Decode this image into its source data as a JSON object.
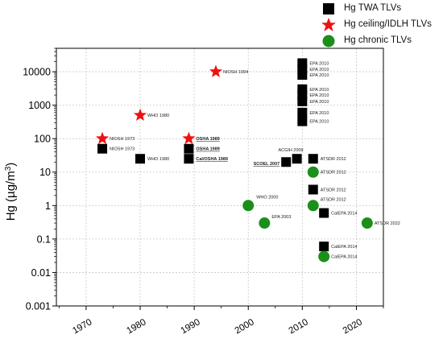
{
  "chart_data": {
    "type": "scatter",
    "ylabel_main": "Hg (µg/m",
    "ylabel_sup": "3",
    "ylabel_end": ")",
    "yscale": "log",
    "ylim": [
      0.001,
      50000
    ],
    "xlim": [
      1964.5,
      2025
    ],
    "x_ticks": [
      "1970",
      "1980",
      "1990",
      "2000",
      "2010",
      "2020"
    ],
    "x_tick_values": [
      1970,
      1980,
      1990,
      2000,
      2010,
      2020
    ],
    "y_ticks": [
      "0.001",
      "0.01",
      "0.1",
      "1",
      "10",
      "100",
      "1000",
      "10000"
    ],
    "y_tick_values": [
      0.001,
      0.01,
      0.1,
      1,
      10,
      100,
      1000,
      10000
    ],
    "grid": true,
    "legend_position": "top-right",
    "series": [
      {
        "name": "Hg TWA TLVs",
        "marker": "square",
        "color": "#000000",
        "points": [
          {
            "x": 1973,
            "y": 50,
            "label": "NIOSH 1973",
            "bold": false
          },
          {
            "x": 1980,
            "y": 25,
            "label": "WHO 1980",
            "bold": false
          },
          {
            "x": 1989,
            "y": 50,
            "label": "OSHA 1989",
            "bold": true
          },
          {
            "x": 1989,
            "y": 25,
            "label": "Cal/OSHA 1989",
            "bold": true
          },
          {
            "x": 2007,
            "y": 20,
            "label": "SCOEL 2007",
            "bold": true
          },
          {
            "x": 2009,
            "y": 25,
            "label": "ACGIH 2009",
            "bold": false
          },
          {
            "x": 2010,
            "y": 18000,
            "label": "EPA 2010",
            "bold": false
          },
          {
            "x": 2010,
            "y": 12000,
            "label": "EPA 2010",
            "bold": false
          },
          {
            "x": 2010,
            "y": 8000,
            "label": "EPA 2010",
            "bold": false
          },
          {
            "x": 2010,
            "y": 3000,
            "label": "EPA 2010",
            "bold": false
          },
          {
            "x": 2010,
            "y": 2000,
            "label": "EPA 2010",
            "bold": false
          },
          {
            "x": 2010,
            "y": 1300,
            "label": "EPA 2010",
            "bold": false
          },
          {
            "x": 2010,
            "y": 600,
            "label": "EPA 2010",
            "bold": false
          },
          {
            "x": 2010,
            "y": 330,
            "label": "EPA 2010",
            "bold": false
          },
          {
            "x": 2012,
            "y": 25,
            "label": "ATSDR 2012",
            "bold": false
          },
          {
            "x": 2012,
            "y": 3,
            "label": "ATSDR 2012",
            "bold": false
          },
          {
            "x": 2014,
            "y": 0.6,
            "label": "CalEPA 2014",
            "bold": false
          },
          {
            "x": 2014,
            "y": 0.06,
            "label": "CalEPA 2014",
            "bold": false
          }
        ]
      },
      {
        "name": "Hg ceiling/IDLH TLVs",
        "marker": "star",
        "color": "#ee1111",
        "points": [
          {
            "x": 1973,
            "y": 100,
            "label": "NIOSH 1973",
            "bold": false
          },
          {
            "x": 1980,
            "y": 500,
            "label": "WHO 1980",
            "bold": false
          },
          {
            "x": 1989,
            "y": 100,
            "label": "OSHA 1989",
            "bold": true
          },
          {
            "x": 1994,
            "y": 10000,
            "label": "NIOSH 1994",
            "bold": false
          }
        ]
      },
      {
        "name": "Hg chronic TLVs",
        "marker": "circle",
        "color": "#1a8f1a",
        "points": [
          {
            "x": 2000,
            "y": 1,
            "label": "WHO 2000",
            "bold": false
          },
          {
            "x": 2003,
            "y": 0.3,
            "label": "EPA 2003",
            "bold": false
          },
          {
            "x": 2012,
            "y": 10,
            "label": "ATSDR 2012",
            "bold": false
          },
          {
            "x": 2012,
            "y": 1,
            "label": "ATSDR 2012",
            "bold": false
          },
          {
            "x": 2014,
            "y": 0.03,
            "label": "CalEPA 2014",
            "bold": false
          },
          {
            "x": 2022,
            "y": 0.3,
            "label": "ATSDR 2022",
            "bold": false
          }
        ]
      }
    ]
  },
  "legend": {
    "items": [
      {
        "label": "Hg TWA TLVs",
        "icon": "black-square-icon"
      },
      {
        "label": "Hg ceiling/IDLH TLVs",
        "icon": "red-star-icon"
      },
      {
        "label": "Hg chronic TLVs",
        "icon": "green-circle-icon"
      }
    ]
  }
}
